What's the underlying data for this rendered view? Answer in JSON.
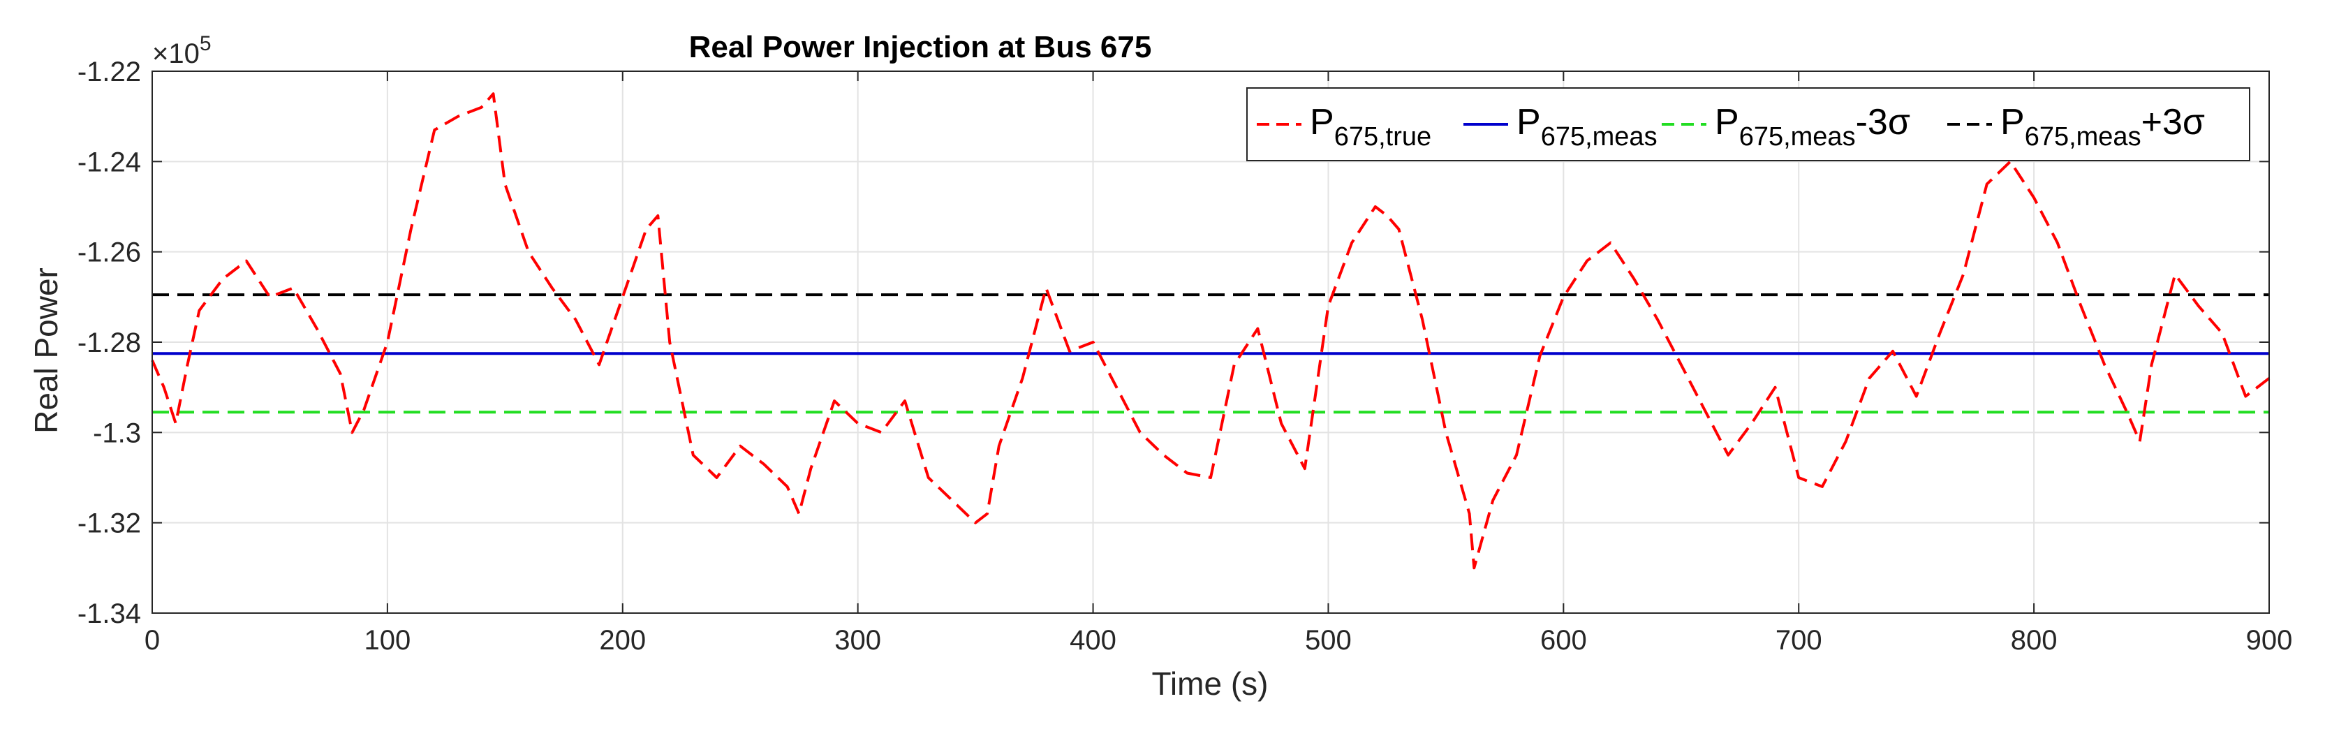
{
  "chart_data": {
    "type": "line",
    "title": "Real Power Injection at Bus 675",
    "xlabel": "Time (s)",
    "ylabel": "Real Power",
    "exponent_label": "×10",
    "exponent_power": "5",
    "xlim": [
      0,
      900
    ],
    "ylim": [
      -1.34,
      -1.22
    ],
    "xticks": [
      0,
      100,
      200,
      300,
      400,
      500,
      600,
      700,
      800,
      900
    ],
    "xtick_labels": [
      "0",
      "100",
      "200",
      "300",
      "400",
      "500",
      "600",
      "700",
      "800",
      "900"
    ],
    "yticks": [
      -1.34,
      -1.32,
      -1.3,
      -1.28,
      -1.26,
      -1.24,
      -1.22
    ],
    "ytick_labels": [
      "-1.34",
      "-1.32",
      "-1.3",
      "-1.28",
      "-1.26",
      "-1.24",
      "-1.22"
    ],
    "grid": true,
    "legend_position": "top-right",
    "series": [
      {
        "legend_main": "P",
        "legend_sub": "675,true",
        "legend_suffix": "",
        "color": "#ff0000",
        "dash": "dashed",
        "x": [
          0,
          5,
          10,
          15,
          20,
          30,
          40,
          50,
          60,
          70,
          80,
          85,
          90,
          100,
          110,
          120,
          130,
          140,
          145,
          150,
          160,
          170,
          180,
          190,
          200,
          210,
          215,
          220,
          230,
          240,
          250,
          260,
          270,
          275,
          280,
          290,
          300,
          310,
          320,
          330,
          340,
          350,
          355,
          360,
          370,
          380,
          390,
          400,
          410,
          420,
          430,
          440,
          450,
          460,
          470,
          480,
          490,
          500,
          510,
          520,
          525,
          530,
          540,
          550,
          560,
          562,
          570,
          580,
          590,
          600,
          610,
          620,
          630,
          640,
          650,
          660,
          670,
          680,
          690,
          700,
          710,
          720,
          730,
          740,
          750,
          760,
          770,
          780,
          790,
          800,
          810,
          820,
          830,
          840,
          845,
          850,
          860,
          870,
          880,
          890,
          900
        ],
        "values": [
          -1.284,
          -1.29,
          -1.298,
          -1.285,
          -1.273,
          -1.266,
          -1.262,
          -1.27,
          -1.268,
          -1.277,
          -1.287,
          -1.3,
          -1.295,
          -1.28,
          -1.255,
          -1.233,
          -1.23,
          -1.228,
          -1.225,
          -1.245,
          -1.26,
          -1.268,
          -1.275,
          -1.285,
          -1.27,
          -1.255,
          -1.252,
          -1.28,
          -1.305,
          -1.31,
          -1.303,
          -1.307,
          -1.312,
          -1.318,
          -1.308,
          -1.293,
          -1.298,
          -1.3,
          -1.293,
          -1.31,
          -1.315,
          -1.32,
          -1.318,
          -1.303,
          -1.288,
          -1.268,
          -1.282,
          -1.28,
          -1.29,
          -1.3,
          -1.305,
          -1.309,
          -1.31,
          -1.285,
          -1.277,
          -1.298,
          -1.308,
          -1.272,
          -1.258,
          -1.25,
          -1.252,
          -1.255,
          -1.275,
          -1.3,
          -1.318,
          -1.33,
          -1.315,
          -1.305,
          -1.283,
          -1.27,
          -1.262,
          -1.258,
          -1.266,
          -1.275,
          -1.285,
          -1.295,
          -1.305,
          -1.298,
          -1.29,
          -1.31,
          -1.312,
          -1.302,
          -1.288,
          -1.282,
          -1.292,
          -1.278,
          -1.265,
          -1.245,
          -1.24,
          -1.248,
          -1.258,
          -1.272,
          -1.285,
          -1.296,
          -1.302,
          -1.285,
          -1.265,
          -1.272,
          -1.278,
          -1.292,
          -1.288
        ]
      },
      {
        "legend_main": "P",
        "legend_sub": "675,meas",
        "legend_suffix": "",
        "color": "#0000cc",
        "dash": "solid",
        "x": [
          0,
          900
        ],
        "values": [
          -1.2825,
          -1.2825
        ]
      },
      {
        "legend_main": "P",
        "legend_sub": "675,meas",
        "legend_suffix": "-3σ",
        "color": "#22dd22",
        "dash": "dashed",
        "x": [
          0,
          900
        ],
        "values": [
          -1.2955,
          -1.2955
        ]
      },
      {
        "legend_main": "P",
        "legend_sub": "675,meas",
        "legend_suffix": "+3σ",
        "color": "#000000",
        "dash": "dashed",
        "x": [
          0,
          900
        ],
        "values": [
          -1.2695,
          -1.2695
        ]
      }
    ]
  }
}
